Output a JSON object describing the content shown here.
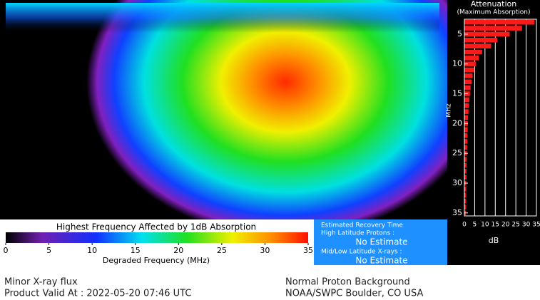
{
  "chart_data": {
    "type": "hbar",
    "title": "Attenuation",
    "subtitle": "(Maximum Absorption)",
    "x_label": "dB",
    "y_label": "MHz",
    "color": "#ff1a1a",
    "grid": true,
    "x": [
      3,
      4,
      5,
      6,
      7,
      8,
      9,
      10,
      11,
      12,
      13,
      14,
      15,
      16,
      17,
      18,
      19,
      20,
      21,
      22,
      23,
      24,
      25,
      26,
      27,
      28,
      29,
      30,
      31,
      32,
      33,
      34,
      35
    ],
    "values": [
      34,
      28,
      22,
      16,
      13,
      8.6,
      7,
      5.5,
      4.8,
      4,
      3.5,
      3,
      2.7,
      2.4,
      2.2,
      2,
      1.8,
      1.7,
      1.6,
      1.5,
      1.4,
      1.3,
      1.2,
      1.1,
      1.1,
      1,
      1,
      0.9,
      0.9,
      0.8,
      0.8,
      0.8,
      0.7
    ],
    "xlim": [
      0,
      35
    ],
    "xticks": [
      0,
      5,
      10,
      15,
      20,
      25,
      30,
      35
    ],
    "ylim": [
      2.5,
      35.5
    ],
    "yticks": [
      5,
      10,
      15,
      20,
      25,
      30,
      35
    ]
  },
  "colorbar": {
    "title": "Highest Frequency Affected by 1dB Absorption",
    "label": "Degraded Frequency (MHz)",
    "lim": [
      0,
      35
    ],
    "ticks": [
      0,
      5,
      10,
      15,
      20,
      25,
      30,
      35
    ]
  },
  "recovery": {
    "title": "Estimated Recovery Time",
    "high_label": "High Latitude Protons :",
    "high_value": "No Estimate",
    "low_label": "Mid/Low Latitude X-rays :",
    "low_value": "No Estimate"
  },
  "footer": {
    "xray": "Minor X-ray flux",
    "valid": "Product Valid At : 2022-05-20 07:46 UTC",
    "proton": "Normal Proton Background",
    "source": "NOAA/SWPC Boulder, CO USA"
  }
}
